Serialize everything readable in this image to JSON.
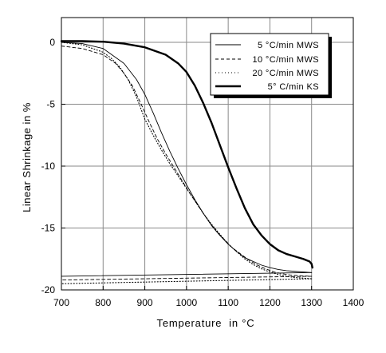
{
  "chart_data": {
    "type": "line",
    "title": "",
    "xlabel": "Temperature  in °C",
    "ylabel": "Linear Shrinkage in %",
    "xlim": [
      700,
      1400
    ],
    "ylim": [
      -20,
      2
    ],
    "x_ticks": [
      700,
      800,
      900,
      1000,
      1100,
      1200,
      1300,
      1400
    ],
    "y_ticks": [
      0,
      -5,
      -10,
      -15,
      -20
    ],
    "grid": true,
    "legend_position": "top-right",
    "series": [
      {
        "name": "5 °C/min MWS",
        "style": "solid",
        "heating": {
          "x": [
            700,
            750,
            800,
            850,
            880,
            900,
            920,
            940,
            960,
            980,
            1000,
            1020,
            1040,
            1060,
            1080,
            1100,
            1120,
            1140,
            1160,
            1180,
            1200,
            1220,
            1240,
            1260,
            1280,
            1300
          ],
          "y": [
            0,
            -0.1,
            -0.5,
            -1.7,
            -3.0,
            -4.2,
            -5.7,
            -7.3,
            -8.8,
            -10.2,
            -11.5,
            -12.7,
            -13.8,
            -14.8,
            -15.6,
            -16.3,
            -16.9,
            -17.4,
            -17.7,
            -18.0,
            -18.2,
            -18.35,
            -18.45,
            -18.5,
            -18.55,
            -18.6
          ]
        },
        "cooling": {
          "x": [
            1300,
            700
          ],
          "y": [
            -18.6,
            -18.9
          ]
        }
      },
      {
        "name": "10 °C/min MWS",
        "style": "dashed",
        "heating": {
          "x": [
            700,
            750,
            800,
            830,
            850,
            870,
            890,
            910,
            930,
            950,
            970,
            990,
            1010,
            1030,
            1050,
            1070,
            1090,
            1110,
            1130,
            1150,
            1170,
            1190,
            1210,
            1230,
            1250,
            1270,
            1300
          ],
          "y": [
            -0.3,
            -0.5,
            -1.0,
            -1.7,
            -2.5,
            -3.5,
            -4.9,
            -6.4,
            -7.8,
            -9.0,
            -10.1,
            -11.2,
            -12.3,
            -13.3,
            -14.3,
            -15.2,
            -15.9,
            -16.6,
            -17.1,
            -17.6,
            -18.0,
            -18.3,
            -18.55,
            -18.7,
            -18.8,
            -18.85,
            -18.9
          ]
        },
        "cooling": {
          "x": [
            1300,
            700
          ],
          "y": [
            -18.9,
            -19.2
          ]
        }
      },
      {
        "name": "20 °C/min MWS",
        "style": "dotted",
        "heating": {
          "x": [
            700,
            750,
            800,
            820,
            840,
            860,
            880,
            900,
            920,
            940,
            960,
            980,
            1000,
            1020,
            1040,
            1060,
            1080,
            1100,
            1120,
            1140,
            1160,
            1180,
            1200,
            1220,
            1240,
            1260,
            1280,
            1300
          ],
          "y": [
            0,
            -0.2,
            -0.8,
            -1.3,
            -2.0,
            -3.0,
            -4.4,
            -6.2,
            -7.5,
            -8.7,
            -9.8,
            -10.8,
            -11.8,
            -12.8,
            -13.8,
            -14.7,
            -15.5,
            -16.3,
            -16.9,
            -17.5,
            -17.95,
            -18.3,
            -18.55,
            -18.75,
            -18.9,
            -19.0,
            -19.05,
            -19.1
          ]
        },
        "cooling": {
          "x": [
            1300,
            700
          ],
          "y": [
            -19.1,
            -19.5
          ]
        }
      },
      {
        "name": "5° C/min KS",
        "style": "thick",
        "x": [
          700,
          750,
          800,
          850,
          900,
          950,
          980,
          1000,
          1020,
          1040,
          1060,
          1080,
          1100,
          1120,
          1140,
          1160,
          1180,
          1200,
          1220,
          1240,
          1260,
          1280,
          1295,
          1300,
          1302
        ],
        "y": [
          0.1,
          0.1,
          0.05,
          -0.1,
          -0.4,
          -1.0,
          -1.7,
          -2.4,
          -3.5,
          -4.9,
          -6.5,
          -8.3,
          -10.1,
          -11.8,
          -13.4,
          -14.7,
          -15.6,
          -16.3,
          -16.8,
          -17.1,
          -17.3,
          -17.5,
          -17.7,
          -17.9,
          -18.2
        ]
      }
    ]
  }
}
